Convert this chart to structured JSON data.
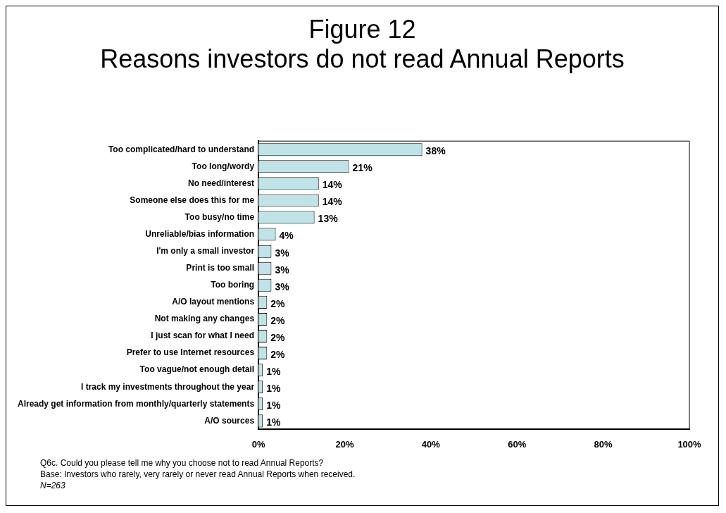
{
  "chart_data": {
    "type": "bar",
    "orientation": "horizontal",
    "title": "Figure 12",
    "subtitle": "Reasons investors do not read Annual Reports",
    "categories": [
      "Too complicated/hard to understand",
      "Too long/wordy",
      "No need/interest",
      "Someone else does this for me",
      "Too busy/no time",
      "Unreliable/bias information",
      "I'm only a small investor",
      "Print is too small",
      "Too boring",
      "A/O layout mentions",
      "Not making any changes",
      "I just scan for what I need",
      "Prefer to use Internet resources",
      "Too vague/not enough detail",
      "I track my investments throughout the year",
      "Already get information from monthly/quarterly statements",
      "A/O sources"
    ],
    "values": [
      38,
      21,
      14,
      14,
      13,
      4,
      3,
      3,
      3,
      2,
      2,
      2,
      2,
      1,
      1,
      1,
      1
    ],
    "value_labels": [
      "38%",
      "21%",
      "14%",
      "14%",
      "13%",
      "4%",
      "3%",
      "3%",
      "3%",
      "2%",
      "2%",
      "2%",
      "2%",
      "1%",
      "1%",
      "1%",
      "1%"
    ],
    "color": "#bfe3e6",
    "xlim": [
      0,
      100
    ],
    "xticks": [
      {
        "value": 0,
        "label": "0%"
      },
      {
        "value": 20,
        "label": "20%"
      },
      {
        "value": 40,
        "label": "40%"
      },
      {
        "value": 60,
        "label": "60%"
      },
      {
        "value": 80,
        "label": "80%"
      },
      {
        "value": 100,
        "label": "100%"
      }
    ],
    "grid": false,
    "legend": false,
    "annotations": [
      "Q6c. Could you please tell me why you choose not to read Annual Reports?",
      "Base: Investors who rarely, very rarely or never read Annual Reports when received.",
      "N=263"
    ]
  }
}
